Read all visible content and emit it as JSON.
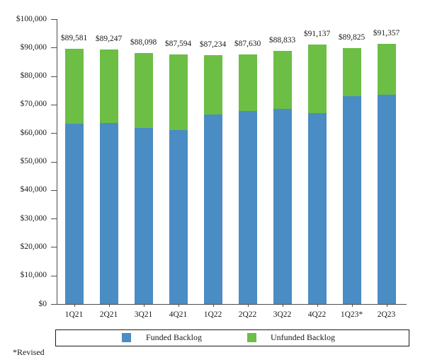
{
  "chart_data": {
    "type": "bar",
    "stacked": true,
    "title": "",
    "xlabel": "",
    "ylabel": "",
    "ylim": [
      0,
      100000
    ],
    "grid": false,
    "legend_position": "bottom",
    "categories": [
      "1Q21",
      "2Q21",
      "3Q21",
      "4Q21",
      "1Q22",
      "2Q22",
      "3Q22",
      "4Q22",
      "1Q23*",
      "2Q23"
    ],
    "series": [
      {
        "name": "Funded Backlog",
        "color": "#4a8cc4",
        "values": [
          63200,
          63600,
          61700,
          61000,
          66500,
          67700,
          68600,
          66900,
          72900,
          73400
        ]
      },
      {
        "name": "Unfunded Backlog",
        "color": "#6cbe45",
        "values": [
          26381,
          25647,
          26398,
          26594,
          20734,
          19930,
          20233,
          24237,
          16925,
          17957
        ]
      }
    ],
    "totals": [
      89581,
      89247,
      88098,
      87594,
      87234,
      87630,
      88833,
      91137,
      89825,
      91357
    ],
    "total_labels": [
      "$89,581",
      "$89,247",
      "$88,098",
      "$87,594",
      "$87,234",
      "$87,630",
      "$88,833",
      "$91,137",
      "$89,825",
      "$91,357"
    ],
    "y_tick_values": [
      0,
      10000,
      20000,
      30000,
      40000,
      50000,
      60000,
      70000,
      80000,
      90000,
      100000
    ],
    "y_tick_labels": [
      "$0",
      "$10,000",
      "$20,000",
      "$30,000",
      "$40,000",
      "$50,000",
      "$60,000",
      "$70,000",
      "$80,000",
      "$90,000",
      "$100,000"
    ]
  },
  "legend": {
    "items": [
      {
        "label": "Funded Backlog",
        "color": "#4a8cc4"
      },
      {
        "label": "Unfunded Backlog",
        "color": "#6cbe45"
      }
    ]
  },
  "footnote": "*Revised",
  "colors": {
    "funded": "#4a8cc4",
    "unfunded": "#6cbe45",
    "axis": "#4d4d4d",
    "text": "#1a1a1a"
  }
}
